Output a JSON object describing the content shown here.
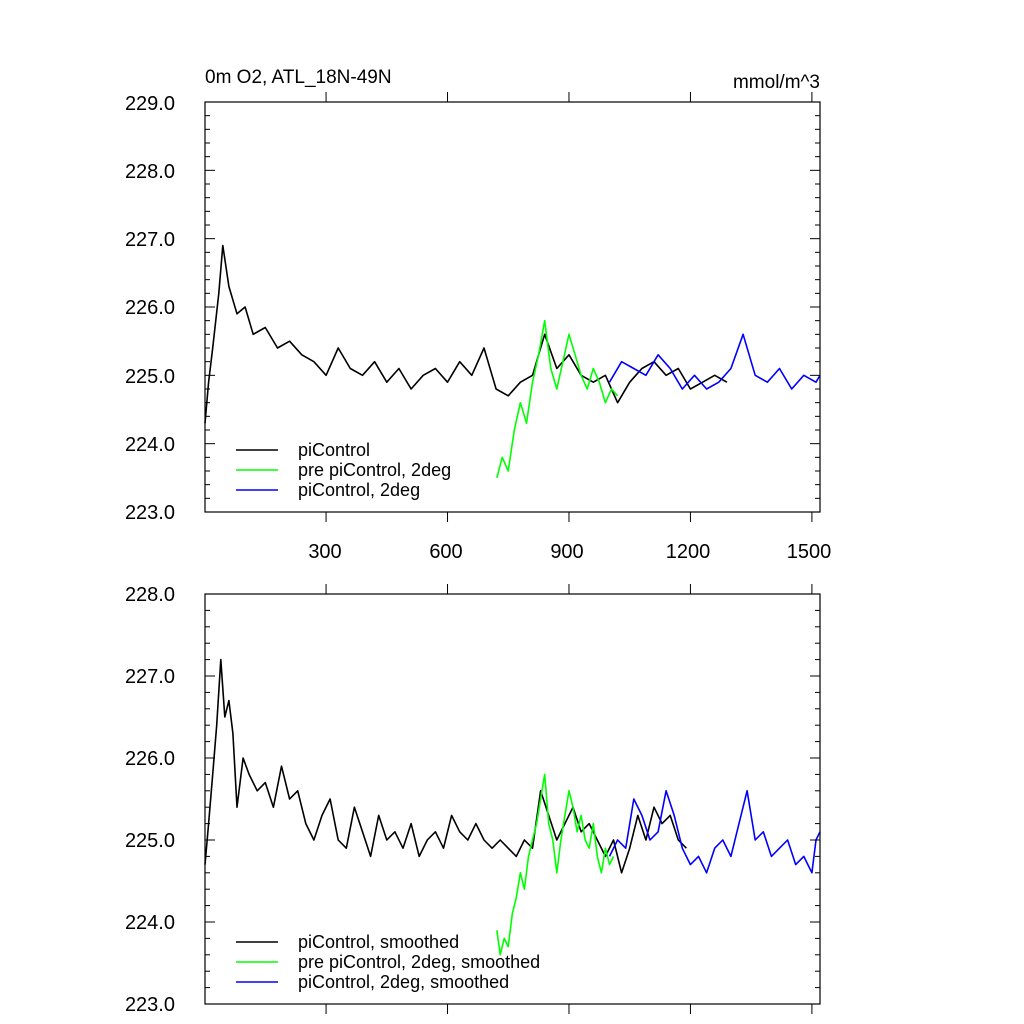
{
  "chart_data": [
    {
      "type": "line",
      "title_left": "0m O2, ATL_18N-49N",
      "title_right": "mmol/m^3",
      "xlim": [
        1,
        1520
      ],
      "ylim": [
        223.0,
        229.0
      ],
      "xticks": [
        300,
        600,
        900,
        1200,
        1500
      ],
      "xtick_labels": [
        "300",
        "600",
        "900",
        "1200",
        "1500"
      ],
      "yticks": [
        223.0,
        224.0,
        225.0,
        226.0,
        227.0,
        228.0,
        229.0
      ],
      "ytick_labels": [
        "223.0",
        "224.0",
        "225.0",
        "226.0",
        "227.0",
        "228.0",
        "229.0"
      ],
      "legend_position": "bottom-left",
      "series": [
        {
          "name": "piControl",
          "color": "#000000",
          "x": [
            1,
            10,
            20,
            35,
            45,
            60,
            80,
            100,
            120,
            150,
            180,
            210,
            240,
            270,
            300,
            330,
            360,
            390,
            420,
            450,
            480,
            510,
            540,
            570,
            600,
            630,
            660,
            690,
            720,
            750,
            780,
            810,
            840,
            870,
            900,
            930,
            960,
            990,
            1020,
            1050,
            1080,
            1110,
            1140,
            1170,
            1200,
            1230,
            1260,
            1290
          ],
          "values": [
            224.3,
            224.9,
            225.4,
            226.2,
            226.9,
            226.3,
            225.9,
            226.0,
            225.6,
            225.7,
            225.4,
            225.5,
            225.3,
            225.2,
            225.0,
            225.4,
            225.1,
            225.0,
            225.2,
            224.9,
            225.1,
            224.8,
            225.0,
            225.1,
            224.9,
            225.2,
            225.0,
            225.4,
            224.8,
            224.7,
            224.9,
            225.0,
            225.6,
            225.1,
            225.3,
            225.0,
            224.9,
            225.0,
            224.6,
            224.9,
            225.1,
            225.2,
            225.0,
            225.1,
            224.8,
            224.9,
            225.0,
            224.9
          ]
        },
        {
          "name": "pre piControl, 2deg",
          "color": "#00ff00",
          "x": [
            722,
            735,
            750,
            765,
            780,
            795,
            810,
            825,
            840,
            855,
            870,
            885,
            900,
            915,
            930,
            945,
            960,
            975,
            990,
            1005,
            1020
          ],
          "values": [
            223.5,
            223.8,
            223.6,
            224.2,
            224.6,
            224.3,
            224.9,
            225.3,
            225.8,
            225.1,
            224.8,
            225.2,
            225.6,
            225.3,
            225.0,
            224.8,
            225.1,
            224.9,
            224.6,
            224.8,
            224.7
          ]
        },
        {
          "name": "piControl, 2deg",
          "color": "#0000ff",
          "x": [
            1000,
            1030,
            1060,
            1090,
            1120,
            1150,
            1180,
            1210,
            1240,
            1270,
            1300,
            1330,
            1360,
            1390,
            1420,
            1450,
            1480,
            1510,
            1520
          ],
          "values": [
            224.9,
            225.2,
            225.1,
            225.0,
            225.3,
            225.1,
            224.8,
            225.0,
            224.8,
            224.9,
            225.1,
            225.6,
            225.0,
            224.9,
            225.1,
            224.8,
            225.0,
            224.9,
            225.0
          ]
        }
      ]
    },
    {
      "type": "line",
      "xlim": [
        1,
        1520
      ],
      "ylim": [
        223.0,
        228.0
      ],
      "xticks": [
        300,
        600,
        900,
        1200,
        1500
      ],
      "yticks": [
        223.0,
        224.0,
        225.0,
        226.0,
        227.0,
        228.0
      ],
      "ytick_labels": [
        "223.0",
        "224.0",
        "225.0",
        "226.0",
        "227.0",
        "228.0"
      ],
      "legend_position": "bottom-left",
      "series": [
        {
          "name": "piControl, smoothed",
          "color": "#000000",
          "x": [
            1,
            10,
            20,
            30,
            40,
            50,
            60,
            70,
            80,
            95,
            110,
            130,
            150,
            170,
            190,
            210,
            230,
            250,
            270,
            290,
            310,
            330,
            350,
            370,
            390,
            410,
            430,
            450,
            470,
            490,
            510,
            530,
            550,
            570,
            590,
            610,
            630,
            650,
            670,
            690,
            710,
            730,
            750,
            770,
            790,
            810,
            830,
            850,
            870,
            890,
            910,
            930,
            950,
            970,
            990,
            1010,
            1030,
            1050,
            1070,
            1090,
            1110,
            1130,
            1150,
            1170,
            1190
          ],
          "values": [
            224.7,
            225.2,
            225.8,
            226.4,
            227.2,
            226.5,
            226.7,
            226.3,
            225.4,
            226.0,
            225.8,
            225.6,
            225.7,
            225.4,
            225.9,
            225.5,
            225.6,
            225.2,
            225.0,
            225.3,
            225.5,
            225.0,
            224.9,
            225.4,
            225.1,
            224.8,
            225.3,
            225.0,
            225.1,
            224.9,
            225.2,
            224.8,
            225.0,
            225.1,
            224.9,
            225.3,
            225.1,
            225.0,
            225.2,
            225.0,
            224.9,
            225.0,
            224.9,
            224.8,
            225.0,
            224.9,
            225.6,
            225.3,
            225.0,
            225.2,
            225.4,
            225.1,
            225.2,
            225.0,
            224.8,
            225.0,
            224.6,
            224.9,
            225.3,
            225.0,
            225.4,
            225.2,
            225.3,
            225.0,
            224.9
          ]
        },
        {
          "name": "pre piControl, 2deg, smoothed",
          "color": "#00ff00",
          "x": [
            722,
            730,
            740,
            750,
            760,
            770,
            780,
            790,
            800,
            810,
            820,
            830,
            840,
            850,
            860,
            870,
            880,
            890,
            900,
            910,
            920,
            930,
            940,
            950,
            960,
            970,
            980,
            990,
            1000,
            1010
          ],
          "values": [
            223.9,
            223.6,
            223.8,
            223.7,
            224.1,
            224.3,
            224.6,
            224.4,
            224.8,
            225.0,
            225.2,
            225.5,
            225.8,
            225.2,
            225.0,
            224.6,
            225.0,
            225.3,
            225.6,
            225.4,
            225.1,
            225.3,
            225.0,
            224.9,
            225.2,
            224.8,
            224.6,
            224.9,
            224.7,
            224.8
          ]
        },
        {
          "name": "piControl, 2deg, smoothed",
          "color": "#0000ff",
          "x": [
            1000,
            1020,
            1040,
            1060,
            1080,
            1100,
            1120,
            1140,
            1160,
            1180,
            1200,
            1220,
            1240,
            1260,
            1280,
            1300,
            1320,
            1340,
            1360,
            1380,
            1400,
            1420,
            1440,
            1460,
            1480,
            1500,
            1510,
            1520
          ],
          "values": [
            224.8,
            225.0,
            224.9,
            225.5,
            225.3,
            225.0,
            225.1,
            225.6,
            225.3,
            224.9,
            224.7,
            224.8,
            224.6,
            224.9,
            225.0,
            224.8,
            225.2,
            225.6,
            225.0,
            225.1,
            224.8,
            224.9,
            225.0,
            224.7,
            224.8,
            224.6,
            225.0,
            225.1
          ]
        }
      ]
    }
  ]
}
